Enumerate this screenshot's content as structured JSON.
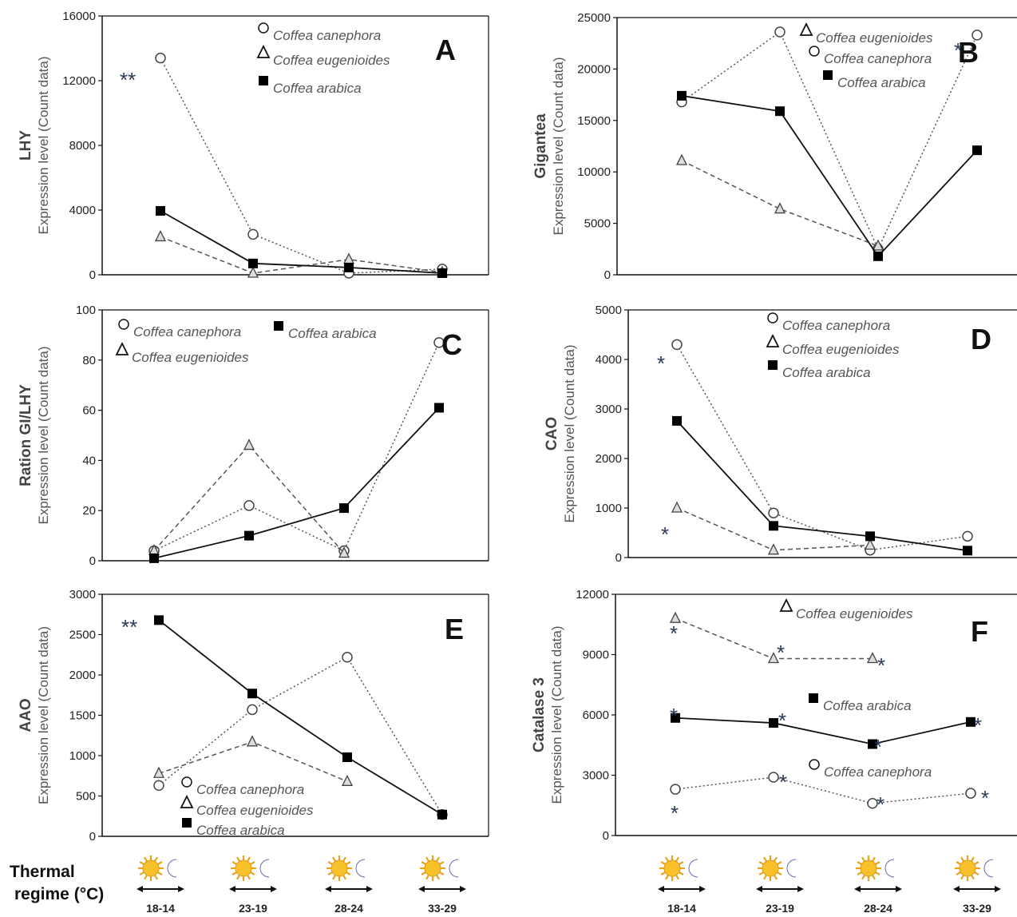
{
  "figure": {
    "thermal_label_line1": "Thermal",
    "thermal_label_line2": "regime (°C)",
    "regimes": [
      "18-14",
      "23-19",
      "28-24",
      "33-29"
    ]
  },
  "chart_data": [
    {
      "id": "A",
      "panel_label": "A",
      "type": "line",
      "ylabel_bold": "LHY",
      "ylabel": "Expression level (Count data)",
      "ylim": [
        0,
        16000
      ],
      "yticks": [
        0,
        4000,
        8000,
        12000,
        16000
      ],
      "legend": [
        {
          "marker": "circle",
          "name": "Coffea canephora"
        },
        {
          "marker": "triangle",
          "name": "Coffea eugenioides"
        },
        {
          "marker": "square",
          "name": "Coffea arabica"
        }
      ],
      "series": [
        {
          "name": "Coffea canephora",
          "marker": "circle",
          "line": "dotted",
          "values": [
            13400,
            2500,
            100,
            350
          ]
        },
        {
          "name": "Coffea eugenioides",
          "marker": "triangle",
          "line": "dashed",
          "values": [
            2350,
            100,
            950,
            150
          ]
        },
        {
          "name": "Coffea arabica",
          "marker": "square",
          "line": "solid",
          "values": [
            3950,
            700,
            450,
            100
          ]
        }
      ],
      "annotations": [
        {
          "text": "**",
          "near": 0
        }
      ]
    },
    {
      "id": "B",
      "panel_label": "B",
      "type": "line",
      "ylabel_bold": "Gigantea",
      "ylabel": "Expression level (Count data)",
      "ylim": [
        0,
        25000
      ],
      "yticks": [
        0,
        5000,
        10000,
        15000,
        20000,
        25000
      ],
      "legend": [
        {
          "marker": "triangle",
          "name": "Coffea eugenioides"
        },
        {
          "marker": "circle",
          "name": "Coffea canephora"
        },
        {
          "marker": "square",
          "name": "Coffea arabica"
        }
      ],
      "series": [
        {
          "name": "Coffea canephora",
          "marker": "circle",
          "line": "dotted",
          "values": [
            16800,
            23600,
            2500,
            23300
          ]
        },
        {
          "name": "Coffea eugenioides",
          "marker": "triangle",
          "line": "dashed",
          "values": [
            11100,
            6400,
            2800,
            null
          ]
        },
        {
          "name": "Coffea arabica",
          "marker": "square",
          "line": "solid",
          "values": [
            17400,
            15900,
            1800,
            12100
          ]
        }
      ],
      "annotations": [
        {
          "text": "*",
          "near": 3
        }
      ]
    },
    {
      "id": "C",
      "panel_label": "C",
      "type": "line",
      "ylabel_bold": "Ration GI/LHY",
      "ylabel": "Expression level (Count data)",
      "ylim": [
        0,
        100
      ],
      "yticks": [
        0,
        20,
        40,
        60,
        80,
        100
      ],
      "legend": [
        {
          "marker": "circle",
          "name": "Coffea canephora"
        },
        {
          "marker": "square",
          "name": "Coffea arabica"
        },
        {
          "marker": "triangle",
          "name": "Coffea eugenioides"
        }
      ],
      "series": [
        {
          "name": "Coffea canephora",
          "marker": "circle",
          "line": "dotted",
          "values": [
            4,
            22,
            4,
            87
          ]
        },
        {
          "name": "Coffea eugenioides",
          "marker": "triangle",
          "line": "dashed",
          "values": [
            4,
            46,
            3,
            null
          ]
        },
        {
          "name": "Coffea arabica",
          "marker": "square",
          "line": "solid",
          "values": [
            1,
            10,
            21,
            61
          ]
        }
      ],
      "annotations": []
    },
    {
      "id": "D",
      "panel_label": "D",
      "type": "line",
      "ylabel_bold": "CAO",
      "ylabel": "Expression level (Count data)",
      "ylim": [
        0,
        5000
      ],
      "yticks": [
        0,
        1000,
        2000,
        3000,
        4000,
        5000
      ],
      "legend": [
        {
          "marker": "circle",
          "name": "Coffea canephora"
        },
        {
          "marker": "triangle",
          "name": "Coffea eugenioides"
        },
        {
          "marker": "square",
          "name": "Coffea arabica"
        }
      ],
      "series": [
        {
          "name": "Coffea canephora",
          "marker": "circle",
          "line": "dotted",
          "values": [
            4300,
            900,
            150,
            430
          ]
        },
        {
          "name": "Coffea eugenioides",
          "marker": "triangle",
          "line": "dashed",
          "values": [
            1000,
            150,
            250,
            null
          ]
        },
        {
          "name": "Coffea arabica",
          "marker": "square",
          "line": "solid",
          "values": [
            2760,
            640,
            430,
            140
          ]
        }
      ],
      "annotations": [
        {
          "text": "*",
          "near": 0
        },
        {
          "text": "*",
          "near": 0
        }
      ]
    },
    {
      "id": "E",
      "panel_label": "E",
      "type": "line",
      "ylabel_bold": "AAO",
      "ylabel": "Expression level (Count data)",
      "ylim": [
        0,
        3000
      ],
      "yticks": [
        0,
        500,
        1000,
        1500,
        2000,
        2500,
        3000
      ],
      "legend": [
        {
          "marker": "circle",
          "name": "Coffea canephora"
        },
        {
          "marker": "triangle",
          "name": "Coffea eugenioides"
        },
        {
          "marker": "square",
          "name": "Coffea arabica"
        }
      ],
      "series": [
        {
          "name": "Coffea canephora",
          "marker": "circle",
          "line": "dotted",
          "values": [
            630,
            1570,
            2220,
            270
          ]
        },
        {
          "name": "Coffea eugenioides",
          "marker": "triangle",
          "line": "dashed",
          "values": [
            780,
            1170,
            680,
            null
          ]
        },
        {
          "name": "Coffea arabica",
          "marker": "square",
          "line": "solid",
          "values": [
            2680,
            1770,
            980,
            270
          ]
        }
      ],
      "annotations": [
        {
          "text": "**",
          "near": 0
        }
      ]
    },
    {
      "id": "F",
      "panel_label": "F",
      "type": "line",
      "ylabel_bold": "Catalase 3",
      "ylabel": "Expression level (Count data)",
      "ylim": [
        0,
        12000
      ],
      "yticks": [
        0,
        3000,
        6000,
        9000,
        12000
      ],
      "legend": [
        {
          "marker": "triangle",
          "name": "Coffea eugenioides"
        },
        {
          "marker": "square",
          "name": "Coffea arabica"
        },
        {
          "marker": "circle",
          "name": "Coffea canephora"
        }
      ],
      "series": [
        {
          "name": "Coffea canephora",
          "marker": "circle",
          "line": "dotted",
          "values": [
            2300,
            2900,
            1600,
            2100
          ]
        },
        {
          "name": "Coffea eugenioides",
          "marker": "triangle",
          "line": "dashed",
          "values": [
            10800,
            8800,
            8800,
            null
          ]
        },
        {
          "name": "Coffea arabica",
          "marker": "square",
          "line": "solid",
          "values": [
            5850,
            5600,
            4550,
            5650
          ]
        }
      ],
      "annotations": [
        {
          "text": "*",
          "near": "all"
        }
      ]
    }
  ]
}
